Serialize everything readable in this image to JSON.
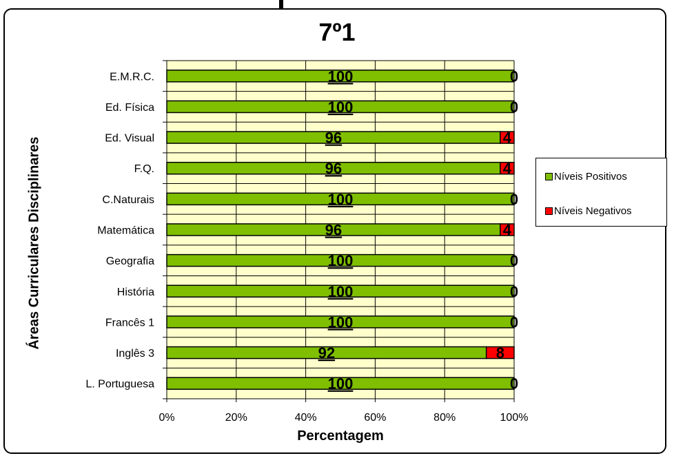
{
  "chart_data": {
    "type": "bar",
    "orientation": "horizontal",
    "stacked": "percent",
    "title": "7º1",
    "xlabel": "Percentagem",
    "ylabel": "Áreas Curriculares  Disciplinares",
    "categories": [
      "E.M.R.C.",
      "Ed. Física",
      "Ed. Visual",
      "F.Q.",
      "C.Naturais",
      "Matemática",
      "Geografia",
      "História",
      "Francês 1",
      "Inglês 3",
      "L. Portuguesa"
    ],
    "series": [
      {
        "name": "Níveis Positivos",
        "color": "#7fbf00",
        "values": [
          100,
          100,
          96,
          96,
          100,
          96,
          100,
          100,
          100,
          92,
          100
        ]
      },
      {
        "name": "Níveis Negativos",
        "color": "#ff0000",
        "values": [
          0,
          0,
          4,
          4,
          0,
          4,
          0,
          0,
          0,
          8,
          0
        ]
      }
    ],
    "xlim": [
      0,
      100
    ],
    "xticks": [
      "0%",
      "20%",
      "40%",
      "60%",
      "80%",
      "100%"
    ],
    "grid": true,
    "plot_background": "#ffffcc",
    "legend_position": "right"
  }
}
